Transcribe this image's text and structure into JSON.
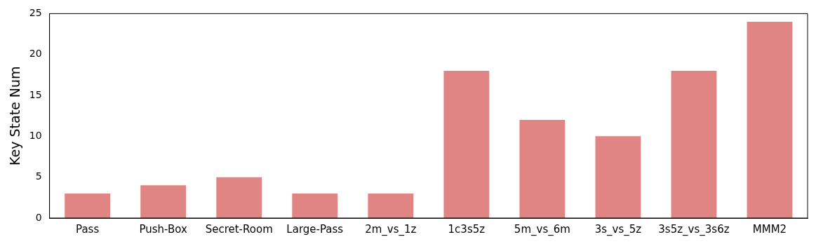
{
  "chart_data": {
    "type": "bar",
    "ylabel": "Key State Num",
    "categories": [
      "Pass",
      "Push-Box",
      "Secret-Room",
      "Large-Pass",
      "2m_vs_1z",
      "1c3s5z",
      "5m_vs_6m",
      "3s_vs_5z",
      "3s5z_vs_3s6z",
      "MMM2"
    ],
    "values": [
      3,
      4,
      5,
      3,
      3,
      18,
      12,
      10,
      18,
      24
    ],
    "color": "#e08583",
    "ylim": [
      0,
      25
    ],
    "yticks": [
      0,
      5,
      10,
      15,
      20,
      25
    ],
    "grid": false
  }
}
